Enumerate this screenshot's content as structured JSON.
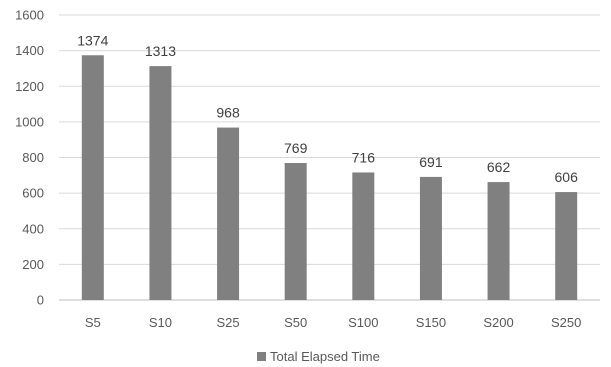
{
  "chart_data": {
    "type": "bar",
    "categories": [
      "S5",
      "S10",
      "S25",
      "S50",
      "S100",
      "S150",
      "S200",
      "S250"
    ],
    "series": [
      {
        "name": "Total Elapsed Time",
        "values": [
          1374,
          1313,
          968,
          769,
          716,
          691,
          662,
          606
        ],
        "color": "#808080"
      }
    ],
    "title": "",
    "xlabel": "",
    "ylabel": "",
    "ylim": [
      0,
      1600
    ],
    "yticks": [
      0,
      200,
      400,
      600,
      800,
      1000,
      1200,
      1400,
      1600
    ],
    "grid": true,
    "data_labels": true,
    "legend_position": "bottom"
  },
  "colors": {
    "bar": "#808080",
    "grid": "#d9d9d9",
    "axis": "#bfbfbf",
    "text": "#595959",
    "label": "#404040"
  }
}
